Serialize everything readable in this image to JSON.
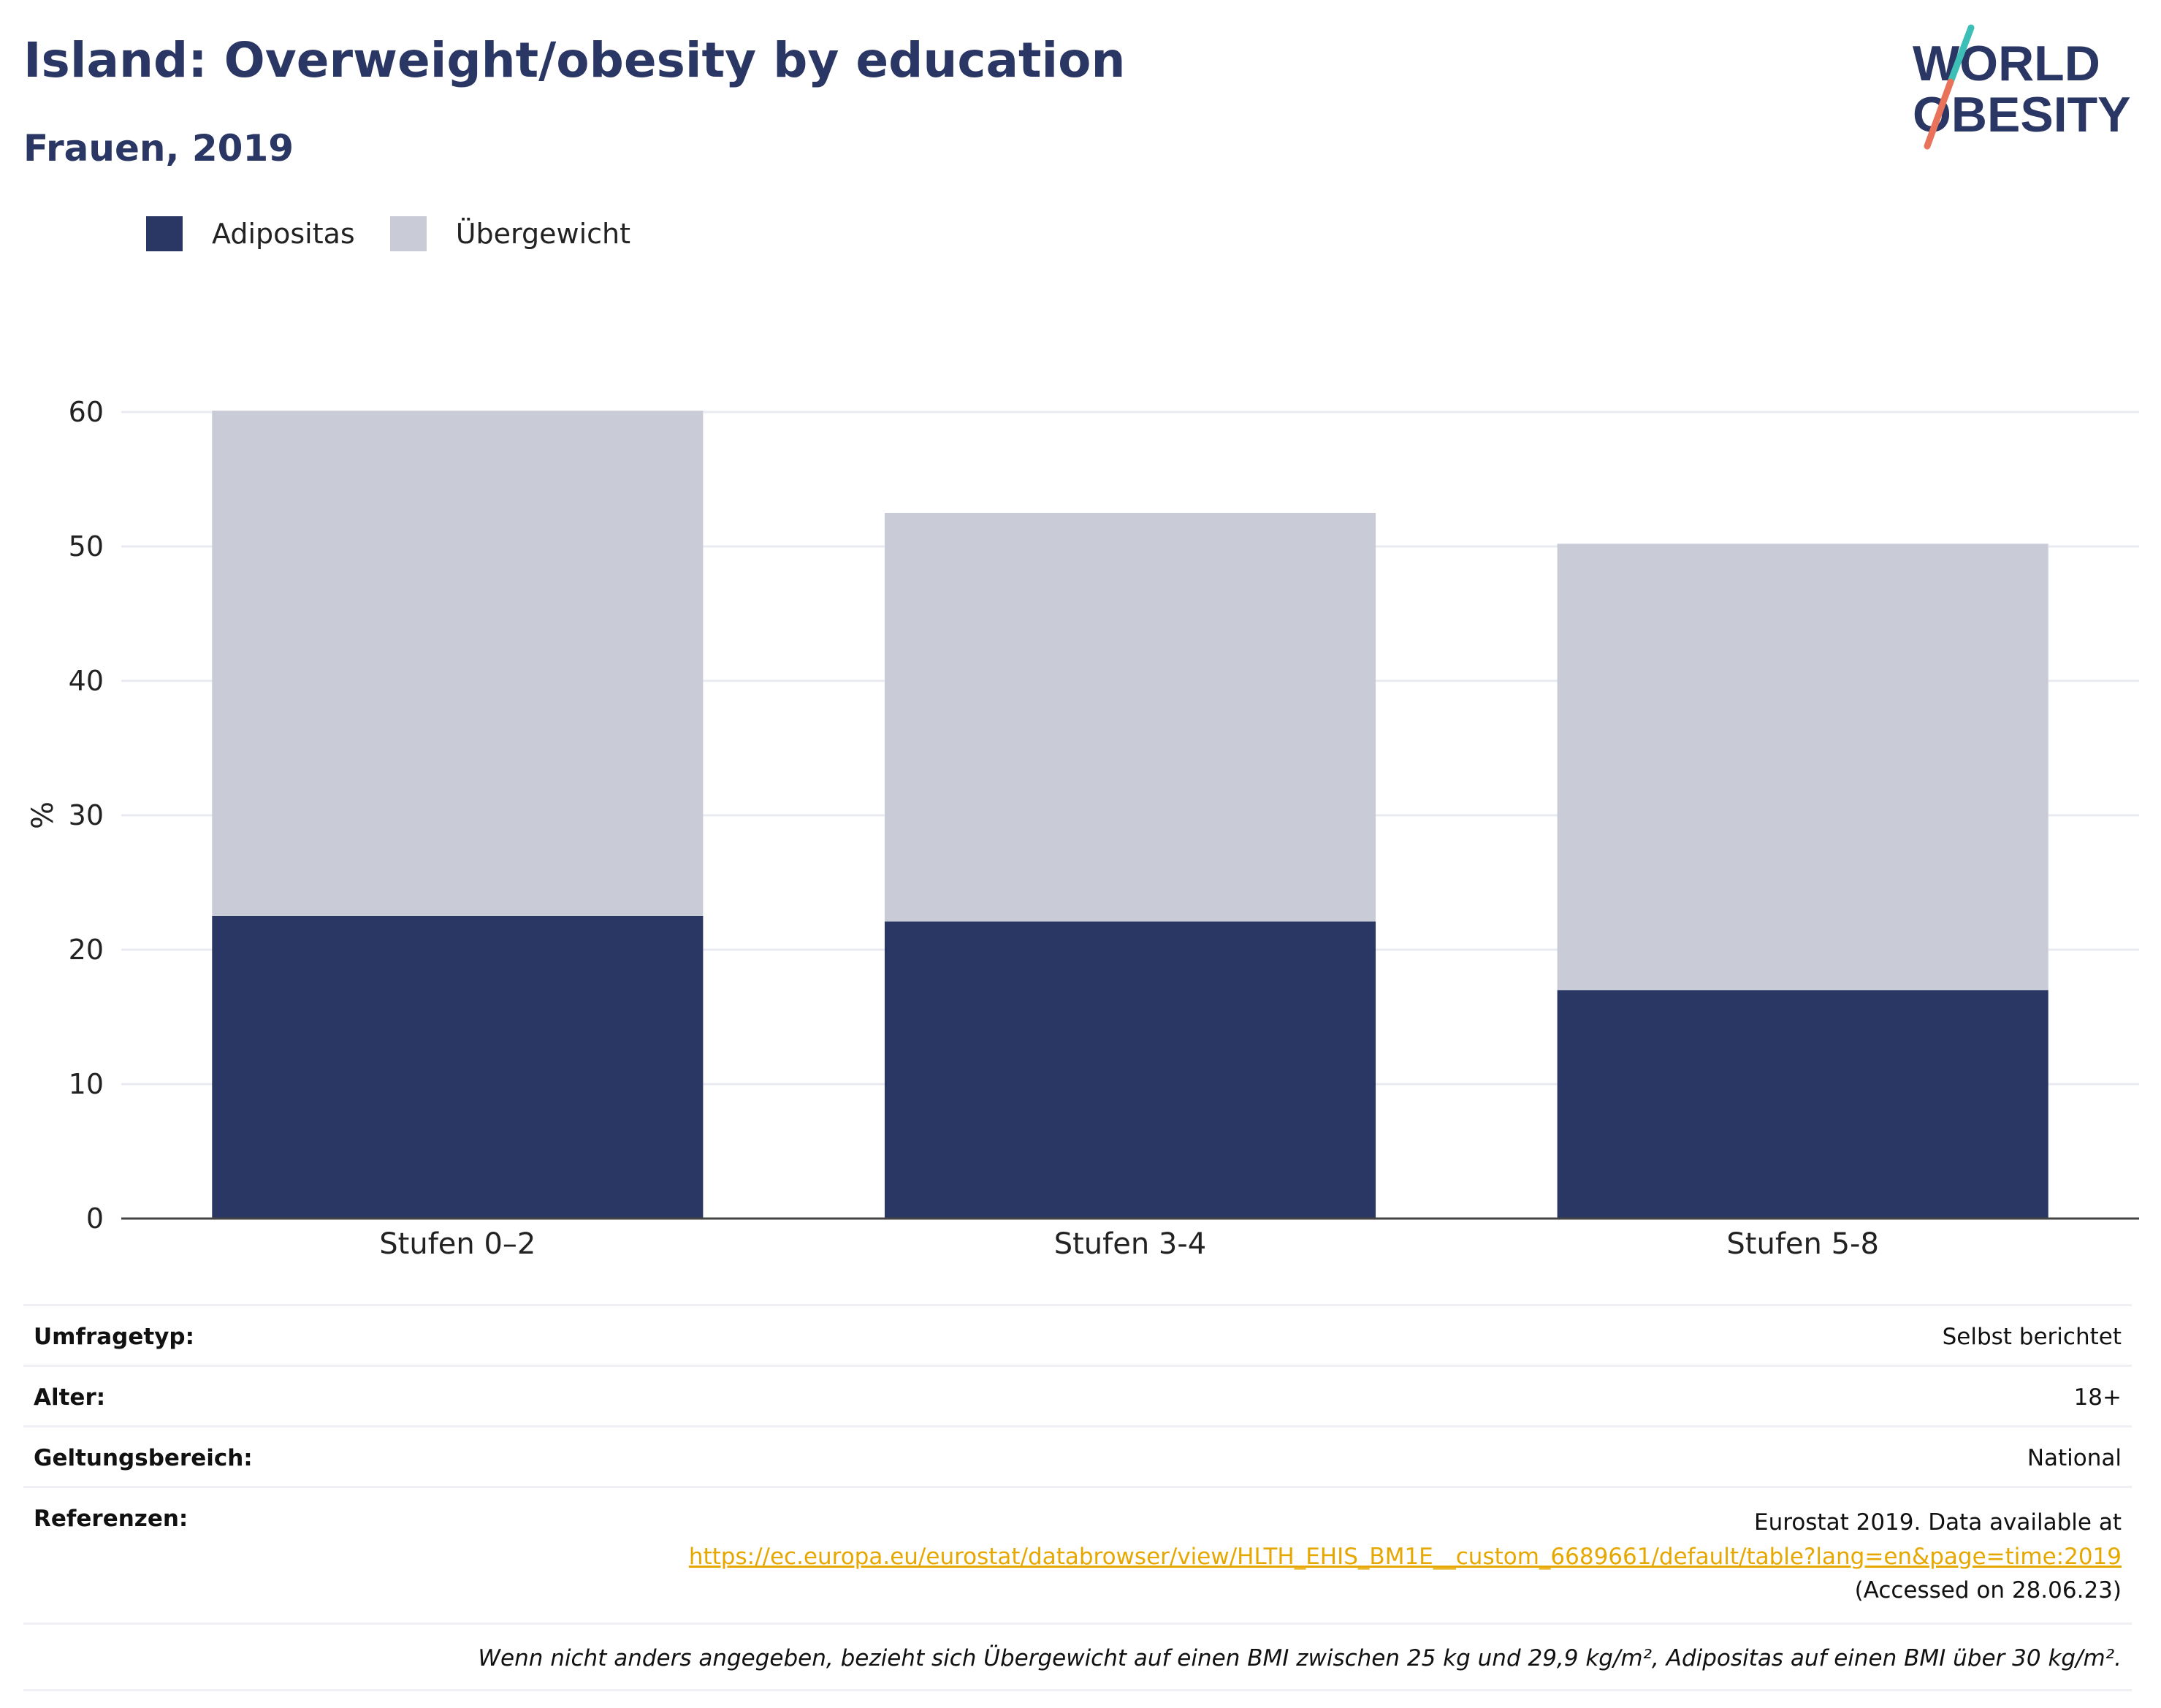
{
  "header": {
    "title": "Island: Overweight/obesity by education",
    "subtitle": "Frauen, 2019"
  },
  "logo": {
    "line1": "WORLD",
    "line2": "OBESITY"
  },
  "legend": [
    {
      "label": "Adipositas",
      "color": "#2a3663"
    },
    {
      "label": "Übergewicht",
      "color": "#c9ccd7"
    }
  ],
  "chart_data": {
    "type": "bar",
    "stacked": true,
    "categories": [
      "Stufen 0–2",
      "Stufen 3-4",
      "Stufen 5-8"
    ],
    "series": [
      {
        "name": "Adipositas",
        "values": [
          22.5,
          22.1,
          17.0
        ],
        "color": "#2a3663"
      },
      {
        "name": "Übergewicht",
        "values": [
          37.6,
          30.4,
          33.2
        ],
        "color": "#c9ccd7"
      }
    ],
    "ylabel": "%",
    "ylim": [
      0,
      60
    ],
    "yticks": [
      0,
      10,
      20,
      30,
      40,
      50,
      60
    ],
    "grid": true,
    "legend_position": "top-left"
  },
  "info": {
    "rows": [
      {
        "label": "Umfragetyp:",
        "value": "Selbst berichtet"
      },
      {
        "label": "Alter:",
        "value": "18+"
      },
      {
        "label": "Geltungsbereich:",
        "value": "National"
      }
    ],
    "references": {
      "label": "Referenzen:",
      "line1": "Eurostat 2019. Data available at",
      "link": "https://ec.europa.eu/eurostat/databrowser/view/HLTH_EHIS_BM1E__custom_6689661/default/table?lang=en&page=time:2019",
      "line3": "(Accessed on 28.06.23)"
    },
    "note": "Wenn nicht anders angegeben, bezieht sich Übergewicht auf einen BMI zwischen 25 kg und 29,9 kg/m², Adipositas auf einen BMI über 30 kg/m²."
  }
}
